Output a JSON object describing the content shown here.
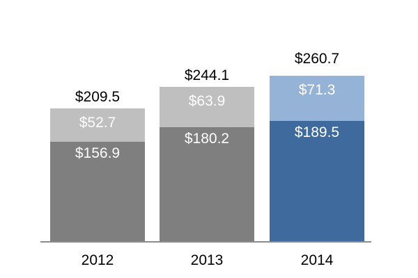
{
  "chart_data": {
    "type": "bar",
    "stacked": true,
    "title": "",
    "categories": [
      "2012",
      "2013",
      "2014"
    ],
    "series": [
      {
        "name": "bottom-segment",
        "values": [
          156.9,
          180.2,
          189.5
        ],
        "labels": [
          "$156.9",
          "$180.2",
          "$189.5"
        ],
        "colors": [
          "#7F7F7F",
          "#7F7F7F",
          "#3F6A9D"
        ]
      },
      {
        "name": "top-segment",
        "values": [
          52.7,
          63.9,
          71.3
        ],
        "labels": [
          "$52.7",
          "$63.9",
          "$71.3"
        ],
        "colors": [
          "#BFBFBF",
          "#BFBFBF",
          "#95B3D7"
        ]
      }
    ],
    "totals": [
      209.5,
      244.1,
      260.7
    ],
    "total_labels": [
      "$209.5",
      "$244.1",
      "$260.7"
    ],
    "legend": "none",
    "gridlines": false,
    "y_axis_visible": false,
    "ylim": [
      0,
      290
    ],
    "colors": {
      "segment_label_text": "#FFFFFF",
      "total_label_text": "#000000",
      "category_label_text": "#000000",
      "x_axis_line": "#8C8C8C",
      "background": "#FFFFFF"
    }
  }
}
